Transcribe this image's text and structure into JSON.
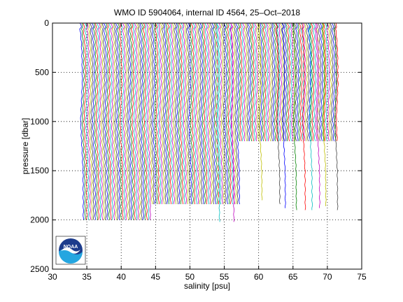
{
  "chart_data": {
    "type": "line",
    "title": "WMO ID 5904064, internal ID 4564, 25–Oct–2018",
    "xlabel": "salinity [psu]",
    "ylabel": "pressure [dbar]",
    "xlim": [
      30,
      75
    ],
    "ylim": [
      2500,
      0
    ],
    "y_reversed": true,
    "x_ticks": [
      30,
      35,
      40,
      45,
      50,
      55,
      60,
      65,
      70,
      75
    ],
    "y_ticks": [
      0,
      500,
      1000,
      1500,
      2000,
      2500
    ],
    "x_tick_labels": [
      "30",
      "35",
      "40",
      "45",
      "50",
      "55",
      "60",
      "65",
      "70",
      "75"
    ],
    "y_tick_labels": [
      "0",
      "500",
      "1000",
      "1500",
      "2000",
      "2500"
    ],
    "grid": "dotted",
    "legend": "none",
    "profile_offset_start": 34.3,
    "profile_offset_end": 71.5,
    "profile_count": 150,
    "profile_colors": [
      "#0000ff",
      "#008000",
      "#ff0000",
      "#00bfbf",
      "#bf00bf",
      "#bfbf00",
      "#404040"
    ],
    "profile_max_depth_segments": [
      {
        "from_index": 0,
        "to_index": 40,
        "max_pressure": 2000
      },
      {
        "from_index": 40,
        "to_index": 92,
        "max_pressure": 1850
      },
      {
        "from_index": 92,
        "to_index": 150,
        "max_pressure": 1210
      }
    ],
    "long_tail_profiles": [
      {
        "offset": 54.1,
        "max_pressure": 2020
      },
      {
        "offset": 56.2,
        "max_pressure": 2030
      },
      {
        "offset": 60.3,
        "max_pressure": 1800
      },
      {
        "offset": 62.9,
        "max_pressure": 1850
      },
      {
        "offset": 63.7,
        "max_pressure": 1880
      },
      {
        "offset": 65.3,
        "max_pressure": 1900
      },
      {
        "offset": 66.6,
        "max_pressure": 1900
      },
      {
        "offset": 67.6,
        "max_pressure": 1900
      },
      {
        "offset": 68.7,
        "max_pressure": 1880
      },
      {
        "offset": 69.6,
        "max_pressure": 1870
      },
      {
        "offset": 71.3,
        "max_pressure": 1900
      }
    ]
  },
  "logo": {
    "text": "NOAA",
    "colors": {
      "sky": "#1d3c8c",
      "sea": "#25a6e0",
      "bird": "#ffffff"
    }
  }
}
